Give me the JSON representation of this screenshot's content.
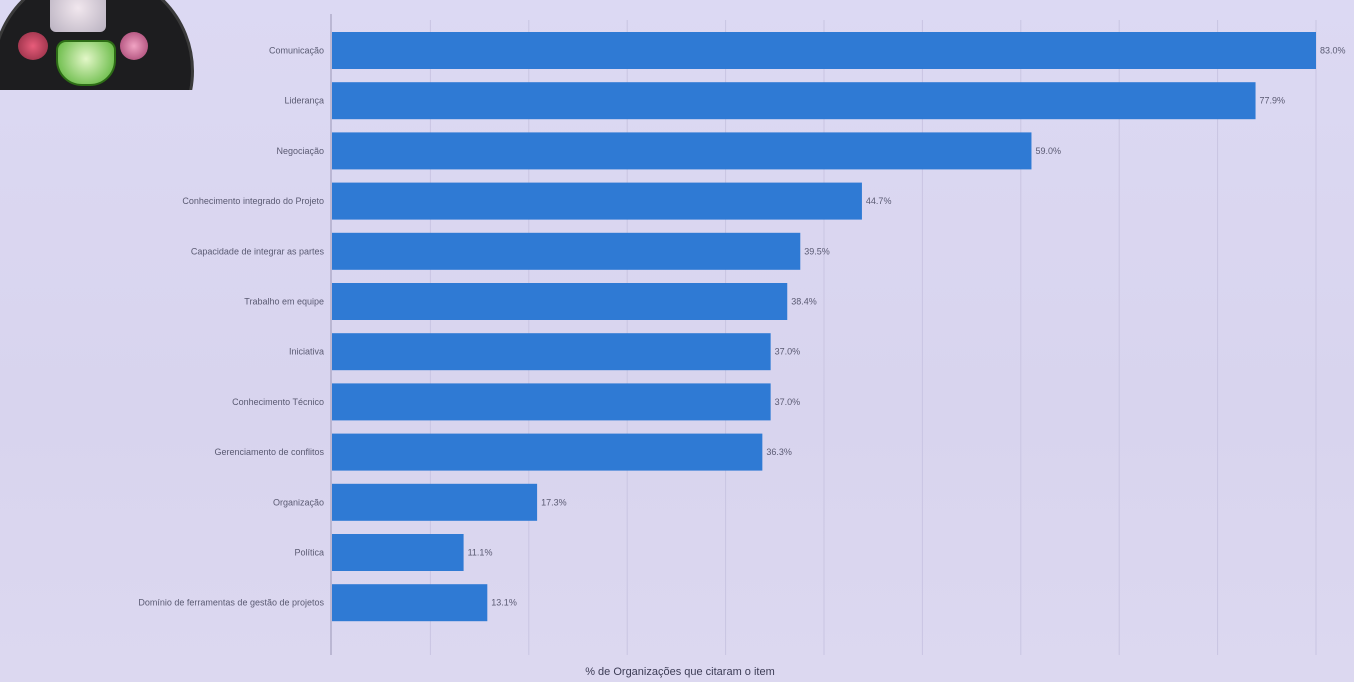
{
  "chart_data": {
    "type": "bar",
    "orientation": "horizontal",
    "categories": [
      "Comunicação",
      "Liderança",
      "Negociação",
      "Conhecimento integrado do Projeto",
      "Capacidade de integrar as partes",
      "Trabalho em equipe",
      "Iniciativa",
      "Conhecimento Técnico",
      "Gerenciamento de conflitos",
      "Organização",
      "Política",
      "Domínio de ferramentas de gestão de projetos"
    ],
    "values": [
      83.0,
      77.9,
      59.0,
      44.7,
      39.5,
      38.4,
      37.0,
      37.0,
      36.3,
      17.3,
      11.1,
      13.1
    ],
    "value_labels": [
      "83.0%",
      "77.9%",
      "59.0%",
      "44.7%",
      "39.5%",
      "38.4%",
      "37.0%",
      "37.0%",
      "36.3%",
      "17.3%",
      "11.1%",
      "13.1%"
    ],
    "xlabel": "% de Organizações que citaram o item",
    "ylabel": "",
    "xlim": [
      0,
      83
    ],
    "grid": true,
    "bar_color": "#2f7ad4"
  }
}
